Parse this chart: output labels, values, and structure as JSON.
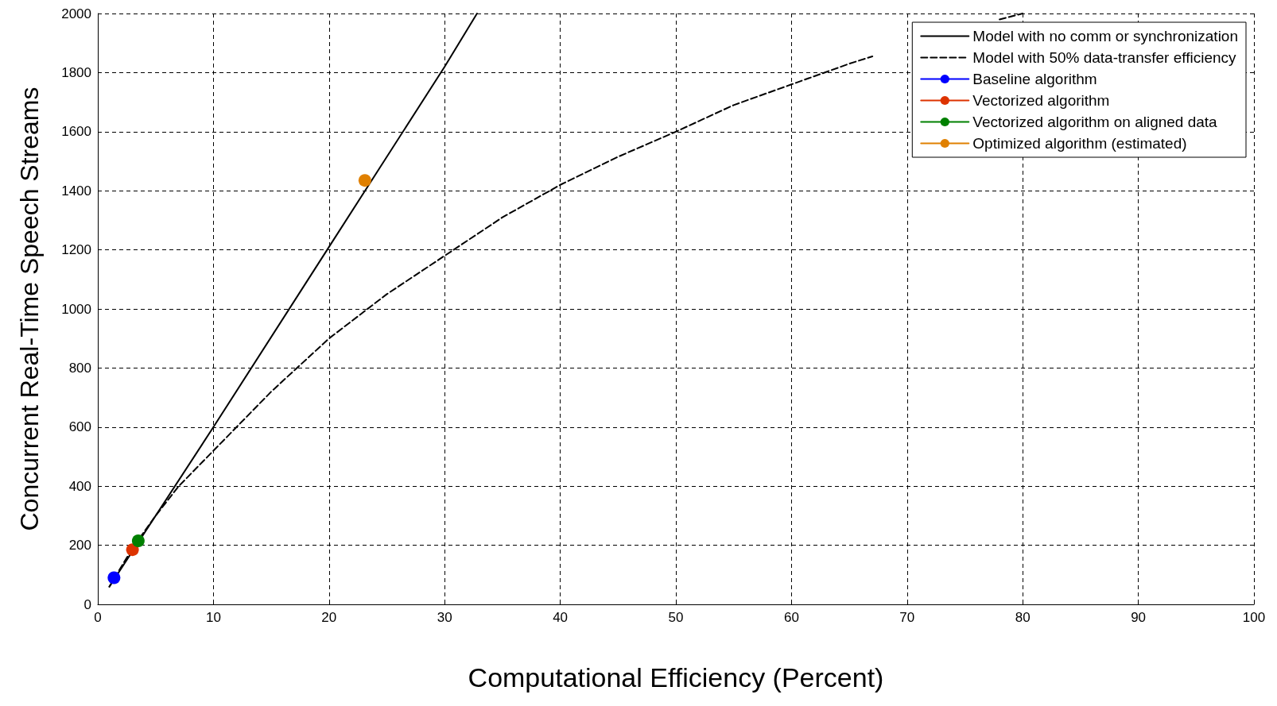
{
  "chart_data": {
    "type": "line",
    "xlabel": "Computational Efficiency (Percent)",
    "ylabel": "Concurrent Real-Time Speech Streams",
    "xlim": [
      0,
      100
    ],
    "xticks": [
      0,
      10,
      20,
      30,
      40,
      50,
      60,
      70,
      80,
      90,
      100
    ],
    "ylim": [
      0,
      2000
    ],
    "yticks": [
      0,
      200,
      400,
      600,
      800,
      1000,
      1200,
      1400,
      1600,
      1800,
      2000
    ],
    "grid": true,
    "legend": "top right",
    "series": [
      {
        "name": "Model with no comm or synchronization",
        "color": "#000000",
        "line_style": "solid",
        "marker": "none",
        "x": [
          1,
          10,
          20,
          30,
          32.8
        ],
        "values": [
          60,
          600,
          1210,
          1820,
          2000
        ]
      },
      {
        "name": "Model with 50% data-transfer efficiency",
        "color": "#000000",
        "line_style": "dashed",
        "marker": "none",
        "x": [
          1,
          3,
          5,
          7,
          10,
          15,
          20,
          25,
          30,
          35,
          40,
          45,
          50,
          55,
          60,
          65,
          67,
          72,
          78,
          80
        ],
        "values": [
          60,
          190,
          300,
          400,
          520,
          720,
          900,
          1050,
          1180,
          1310,
          1420,
          1515,
          1600,
          1690,
          1760,
          1830,
          1855,
          null,
          1980,
          2000
        ]
      },
      {
        "name": "Baseline algorithm",
        "color": "#0000ff",
        "line_style": "solid",
        "marker": "circle",
        "x": [
          1.4
        ],
        "values": [
          90
        ]
      },
      {
        "name": "Vectorized algorithm",
        "color": "#dd3300",
        "line_style": "solid",
        "marker": "circle",
        "x": [
          3.0
        ],
        "values": [
          185
        ]
      },
      {
        "name": "Vectorized algorithm on aligned data",
        "color": "#008000",
        "line_style": "solid",
        "marker": "circle",
        "x": [
          3.5
        ],
        "values": [
          215
        ]
      },
      {
        "name": "Optimized algorithm (estimated)",
        "color": "#e08000",
        "line_style": "solid",
        "marker": "circle",
        "x": [
          23.1
        ],
        "values": [
          1435
        ]
      }
    ]
  }
}
